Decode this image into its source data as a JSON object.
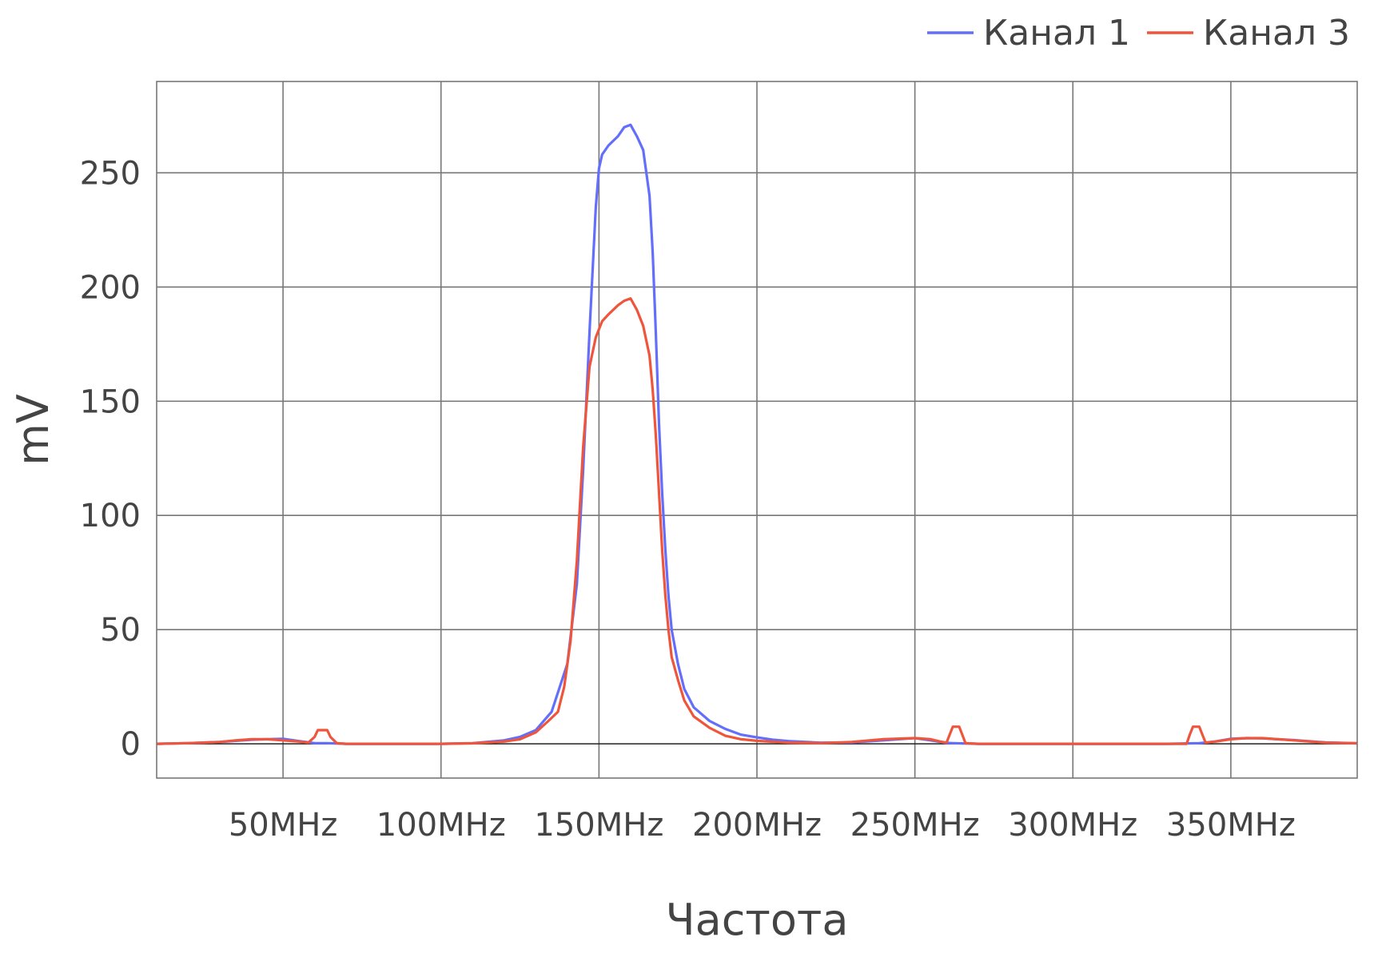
{
  "chart_data": {
    "type": "line",
    "title": "",
    "xlabel": "Частота",
    "ylabel": "mV",
    "x_unit": "MHz",
    "xlim": [
      10,
      390
    ],
    "ylim": [
      -15,
      290
    ],
    "x_ticks": [
      {
        "value": 50,
        "label": "50MHz"
      },
      {
        "value": 100,
        "label": "100MHz"
      },
      {
        "value": 150,
        "label": "150MHz"
      },
      {
        "value": 200,
        "label": "200MHz"
      },
      {
        "value": 250,
        "label": "250MHz"
      },
      {
        "value": 300,
        "label": "300MHz"
      },
      {
        "value": 350,
        "label": "350MHz"
      }
    ],
    "y_ticks": [
      {
        "value": 0,
        "label": "0"
      },
      {
        "value": 50,
        "label": "50"
      },
      {
        "value": 100,
        "label": "100"
      },
      {
        "value": 150,
        "label": "150"
      },
      {
        "value": 200,
        "label": "200"
      },
      {
        "value": 250,
        "label": "250"
      }
    ],
    "grid": true,
    "legend_position": "top-right",
    "series": [
      {
        "name": "Канал 1",
        "color": "#636efa",
        "points": [
          [
            10,
            0
          ],
          [
            20,
            0.3
          ],
          [
            30,
            0.8
          ],
          [
            40,
            1.8
          ],
          [
            45,
            2
          ],
          [
            50,
            2.2
          ],
          [
            55,
            1.2
          ],
          [
            60,
            0.3
          ],
          [
            64,
            0.3
          ],
          [
            70,
            0
          ],
          [
            100,
            0
          ],
          [
            110,
            0.3
          ],
          [
            120,
            1.5
          ],
          [
            125,
            3
          ],
          [
            130,
            6
          ],
          [
            135,
            14
          ],
          [
            140,
            35
          ],
          [
            143,
            70
          ],
          [
            145,
            120
          ],
          [
            147,
            180
          ],
          [
            149,
            235
          ],
          [
            150,
            252
          ],
          [
            151,
            258
          ],
          [
            153,
            262
          ],
          [
            156,
            266
          ],
          [
            158,
            270
          ],
          [
            160,
            271
          ],
          [
            162,
            266
          ],
          [
            164,
            260
          ],
          [
            166,
            240
          ],
          [
            167,
            215
          ],
          [
            168,
            180
          ],
          [
            169,
            140
          ],
          [
            170,
            110
          ],
          [
            171,
            85
          ],
          [
            172,
            65
          ],
          [
            173,
            50
          ],
          [
            175,
            35
          ],
          [
            177,
            24
          ],
          [
            180,
            16
          ],
          [
            185,
            10
          ],
          [
            190,
            6.5
          ],
          [
            195,
            4
          ],
          [
            200,
            2.8
          ],
          [
            205,
            1.8
          ],
          [
            210,
            1.2
          ],
          [
            220,
            0.5
          ],
          [
            230,
            0.6
          ],
          [
            240,
            1.5
          ],
          [
            250,
            2.5
          ],
          [
            255,
            1.5
          ],
          [
            260,
            0.4
          ],
          [
            262,
            0.3
          ],
          [
            270,
            0
          ],
          [
            300,
            0
          ],
          [
            330,
            0
          ],
          [
            340,
            0.3
          ],
          [
            345,
            1
          ],
          [
            350,
            2.2
          ],
          [
            355,
            2.5
          ],
          [
            360,
            2.4
          ],
          [
            370,
            1.6
          ],
          [
            380,
            0.6
          ],
          [
            390,
            0.2
          ]
        ]
      },
      {
        "name": "Канал 3",
        "color": "#ef553b",
        "points": [
          [
            10,
            0
          ],
          [
            20,
            0.3
          ],
          [
            30,
            0.8
          ],
          [
            35,
            1.5
          ],
          [
            40,
            2
          ],
          [
            45,
            2
          ],
          [
            50,
            1.5
          ],
          [
            55,
            1
          ],
          [
            58,
            0.5
          ],
          [
            60,
            3
          ],
          [
            61,
            6
          ],
          [
            64,
            6
          ],
          [
            65,
            3
          ],
          [
            67,
            0.3
          ],
          [
            70,
            0
          ],
          [
            100,
            0
          ],
          [
            110,
            0.2
          ],
          [
            120,
            1
          ],
          [
            125,
            2
          ],
          [
            130,
            5
          ],
          [
            134,
            10
          ],
          [
            137,
            14
          ],
          [
            139,
            25
          ],
          [
            141,
            45
          ],
          [
            143,
            80
          ],
          [
            145,
            130
          ],
          [
            147,
            165
          ],
          [
            149,
            178
          ],
          [
            151,
            185
          ],
          [
            153,
            188
          ],
          [
            156,
            192
          ],
          [
            158,
            194
          ],
          [
            160,
            195
          ],
          [
            162,
            190
          ],
          [
            164,
            183
          ],
          [
            166,
            170
          ],
          [
            167,
            155
          ],
          [
            168,
            135
          ],
          [
            169,
            110
          ],
          [
            170,
            85
          ],
          [
            171,
            65
          ],
          [
            172,
            50
          ],
          [
            173,
            38
          ],
          [
            175,
            28
          ],
          [
            177,
            19
          ],
          [
            180,
            12
          ],
          [
            185,
            7
          ],
          [
            190,
            3.5
          ],
          [
            195,
            2
          ],
          [
            200,
            1.3
          ],
          [
            210,
            0.5
          ],
          [
            220,
            0.3
          ],
          [
            230,
            0.8
          ],
          [
            240,
            2
          ],
          [
            250,
            2.5
          ],
          [
            255,
            2
          ],
          [
            258,
            1
          ],
          [
            260,
            0.5
          ],
          [
            261,
            4
          ],
          [
            262,
            7.5
          ],
          [
            264,
            7.5
          ],
          [
            265,
            4
          ],
          [
            266,
            0.3
          ],
          [
            270,
            0
          ],
          [
            300,
            0
          ],
          [
            336,
            0
          ],
          [
            337,
            4
          ],
          [
            338,
            7.5
          ],
          [
            340,
            7.5
          ],
          [
            341,
            4
          ],
          [
            342,
            0.5
          ],
          [
            345,
            1
          ],
          [
            350,
            2
          ],
          [
            355,
            2.5
          ],
          [
            360,
            2.5
          ],
          [
            370,
            1.5
          ],
          [
            380,
            0.5
          ],
          [
            390,
            0.2
          ]
        ]
      }
    ]
  }
}
